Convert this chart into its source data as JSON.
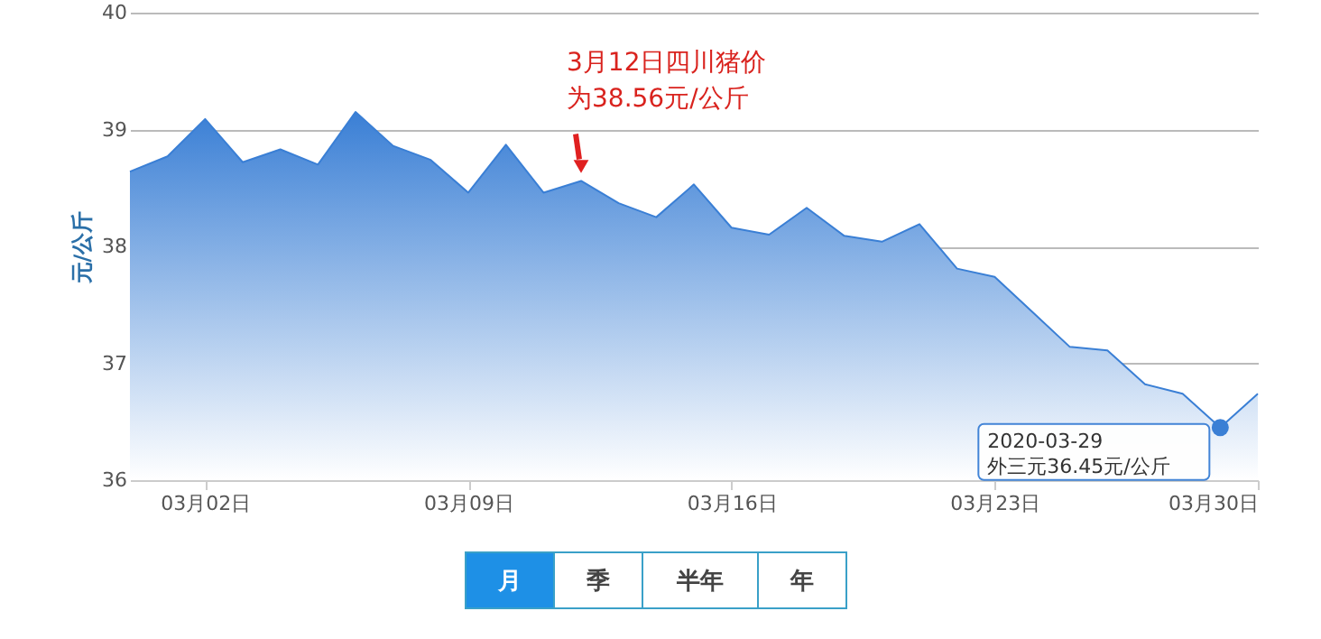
{
  "chart_data": {
    "type": "area",
    "ylabel": "元/公斤",
    "x": [
      "2020-02-29",
      "2020-03-01",
      "2020-03-02",
      "2020-03-03",
      "2020-03-04",
      "2020-03-05",
      "2020-03-06",
      "2020-03-07",
      "2020-03-08",
      "2020-03-09",
      "2020-03-10",
      "2020-03-11",
      "2020-03-12",
      "2020-03-13",
      "2020-03-14",
      "2020-03-15",
      "2020-03-16",
      "2020-03-17",
      "2020-03-18",
      "2020-03-19",
      "2020-03-20",
      "2020-03-21",
      "2020-03-22",
      "2020-03-23",
      "2020-03-24",
      "2020-03-25",
      "2020-03-26",
      "2020-03-27",
      "2020-03-28",
      "2020-03-29",
      "2020-03-30"
    ],
    "series": [
      {
        "color": "#3a7fd5",
        "values": [
          38.64,
          38.77,
          39.09,
          38.72,
          38.83,
          38.7,
          39.15,
          38.86,
          38.74,
          38.46,
          38.87,
          38.46,
          38.56,
          38.37,
          38.25,
          38.53,
          38.16,
          38.1,
          38.33,
          38.09,
          38.04,
          38.19,
          37.81,
          37.74,
          37.44,
          37.14,
          37.11,
          36.82,
          36.74,
          36.45,
          36.74
        ]
      },
      {
        "type": "scatter",
        "color": "#3a7fd5",
        "marker": "circle",
        "x": [
          "2020-03-29"
        ],
        "values": [
          36.45
        ]
      }
    ],
    "xlim": [
      "2020-02-29",
      "2020-03-30"
    ],
    "xticks": [
      {
        "value": "2020-03-02",
        "label": "03月02日"
      },
      {
        "value": "2020-03-09",
        "label": "03月09日"
      },
      {
        "value": "2020-03-16",
        "label": "03月16日"
      },
      {
        "value": "2020-03-23",
        "label": "03月23日"
      },
      {
        "value": "2020-03-30",
        "label": "03月30日"
      }
    ],
    "ylim": [
      36,
      40
    ],
    "yticks": [
      36,
      37,
      38,
      39,
      40
    ],
    "grid": "y",
    "marker": "none",
    "line_style": "solid",
    "annotations": [
      {
        "text": "3月12日四川猪价为38.56元/公斤",
        "x": "2020-03-12",
        "y": 38.56
      },
      {
        "text": "2020-03-29\n外三元36.45元/公斤",
        "x": "2020-03-29",
        "y": 36.45
      },
      "月",
      "季",
      "半年",
      "年"
    ]
  }
}
